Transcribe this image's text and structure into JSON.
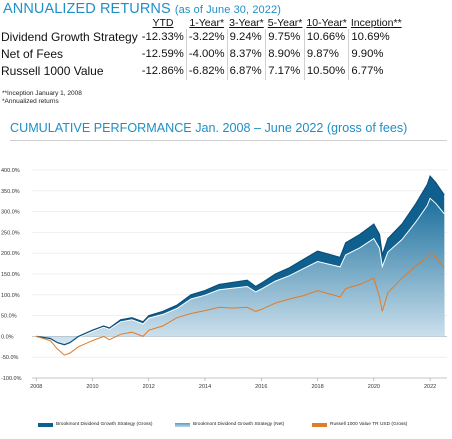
{
  "returns": {
    "title": "ANNUALIZED RETURNS",
    "subtitle": "(as of June 30, 2022)",
    "headers": [
      "YTD",
      "1-Year*",
      "3-Year*",
      "5-Year*",
      "10-Year*",
      "Inception**"
    ],
    "rows": [
      {
        "name": "Dividend Growth Strategy",
        "values": [
          "-12.33%",
          "-3.22%",
          "9.24%",
          "9.75%",
          "10.66%",
          "10.69%"
        ]
      },
      {
        "name": "Net of Fees",
        "values": [
          "-12.59%",
          "-4.00%",
          "8.37%",
          "8.90%",
          "9.87%",
          "9.90%"
        ]
      },
      {
        "name": "Russell 1000 Value",
        "values": [
          "-12.86%",
          "-6.82%",
          "6.87%",
          "7.17%",
          "10.50%",
          "6.77%"
        ]
      }
    ],
    "footnotes": [
      "**Inception January 1, 2008",
      "*Annualized returns"
    ]
  },
  "chart_title": "CUMULATIVE PERFORMANCE Jan. 2008 – June 2022 (gross of fees)",
  "colors": {
    "gross": "#0f5f8f",
    "net_fill_top": "#1a6f9c",
    "net_fill_bottom": "#d7e7f1",
    "benchmark": "#e07b27",
    "accent": "#1f8fc8"
  },
  "chart_data": {
    "type": "area",
    "title": "CUMULATIVE PERFORMANCE Jan. 2008 – June 2022 (gross of fees)",
    "xlabel": "",
    "ylabel": "",
    "xlim": [
      2007.85,
      2022.6
    ],
    "ylim": [
      -100,
      400
    ],
    "x_ticks": [
      2008,
      2010,
      2012,
      2014,
      2016,
      2018,
      2020,
      2022
    ],
    "y_ticks": [
      -100,
      -50,
      0,
      50,
      100,
      150,
      200,
      250,
      300,
      350,
      400
    ],
    "y_tick_labels": [
      "-100.0%",
      "-50.0%",
      "0.0%",
      "50.0%",
      "100.0%",
      "150.0%",
      "200.0%",
      "250.0%",
      "300.0%",
      "350.0%",
      "400.0%"
    ],
    "grid": true,
    "legend_position": "bottom",
    "x": [
      2008.0,
      2008.5,
      2008.75,
      2009.0,
      2009.2,
      2009.5,
      2010.0,
      2010.4,
      2010.6,
      2011.0,
      2011.4,
      2011.8,
      2012.0,
      2012.5,
      2013.0,
      2013.5,
      2014.0,
      2014.5,
      2015.0,
      2015.5,
      2015.8,
      2016.0,
      2016.5,
      2017.0,
      2017.5,
      2018.0,
      2018.8,
      2019.0,
      2019.5,
      2020.0,
      2020.2,
      2020.3,
      2020.5,
      2021.0,
      2021.5,
      2021.9,
      2022.0,
      2022.2,
      2022.5
    ],
    "series": [
      {
        "name": "Brookmont Dividend Growth Strategy (Gross)",
        "values": [
          0,
          -5,
          -15,
          -20,
          -15,
          0,
          15,
          25,
          20,
          40,
          45,
          35,
          50,
          60,
          75,
          100,
          110,
          125,
          130,
          135,
          120,
          128,
          150,
          165,
          185,
          205,
          190,
          225,
          245,
          270,
          245,
          195,
          235,
          270,
          320,
          365,
          385,
          370,
          340
        ]
      },
      {
        "name": "Brookmont Dividend Growth Strategy (Net)",
        "values": [
          0,
          -6,
          -16,
          -22,
          -17,
          -2,
          12,
          22,
          17,
          35,
          40,
          30,
          44,
          53,
          67,
          90,
          99,
          112,
          116,
          120,
          107,
          114,
          133,
          146,
          163,
          180,
          167,
          196,
          213,
          235,
          212,
          168,
          203,
          233,
          276,
          315,
          332,
          320,
          295
        ]
      },
      {
        "name": "Russell 1000 Value TR USD (Gross)",
        "values": [
          0,
          -10,
          -30,
          -45,
          -40,
          -25,
          -10,
          0,
          -8,
          5,
          10,
          0,
          15,
          25,
          45,
          55,
          62,
          70,
          68,
          70,
          60,
          65,
          80,
          90,
          98,
          110,
          95,
          115,
          125,
          140,
          95,
          60,
          105,
          140,
          170,
          190,
          200,
          190,
          165
        ]
      }
    ]
  },
  "legend": [
    {
      "label": "Brookmont Dividend Growth Strategy (Gross)"
    },
    {
      "label": "Brookmont Dividend Growth Strategy (Net)"
    },
    {
      "label": "Russell 1000 Value TR USD (Gross)"
    }
  ]
}
